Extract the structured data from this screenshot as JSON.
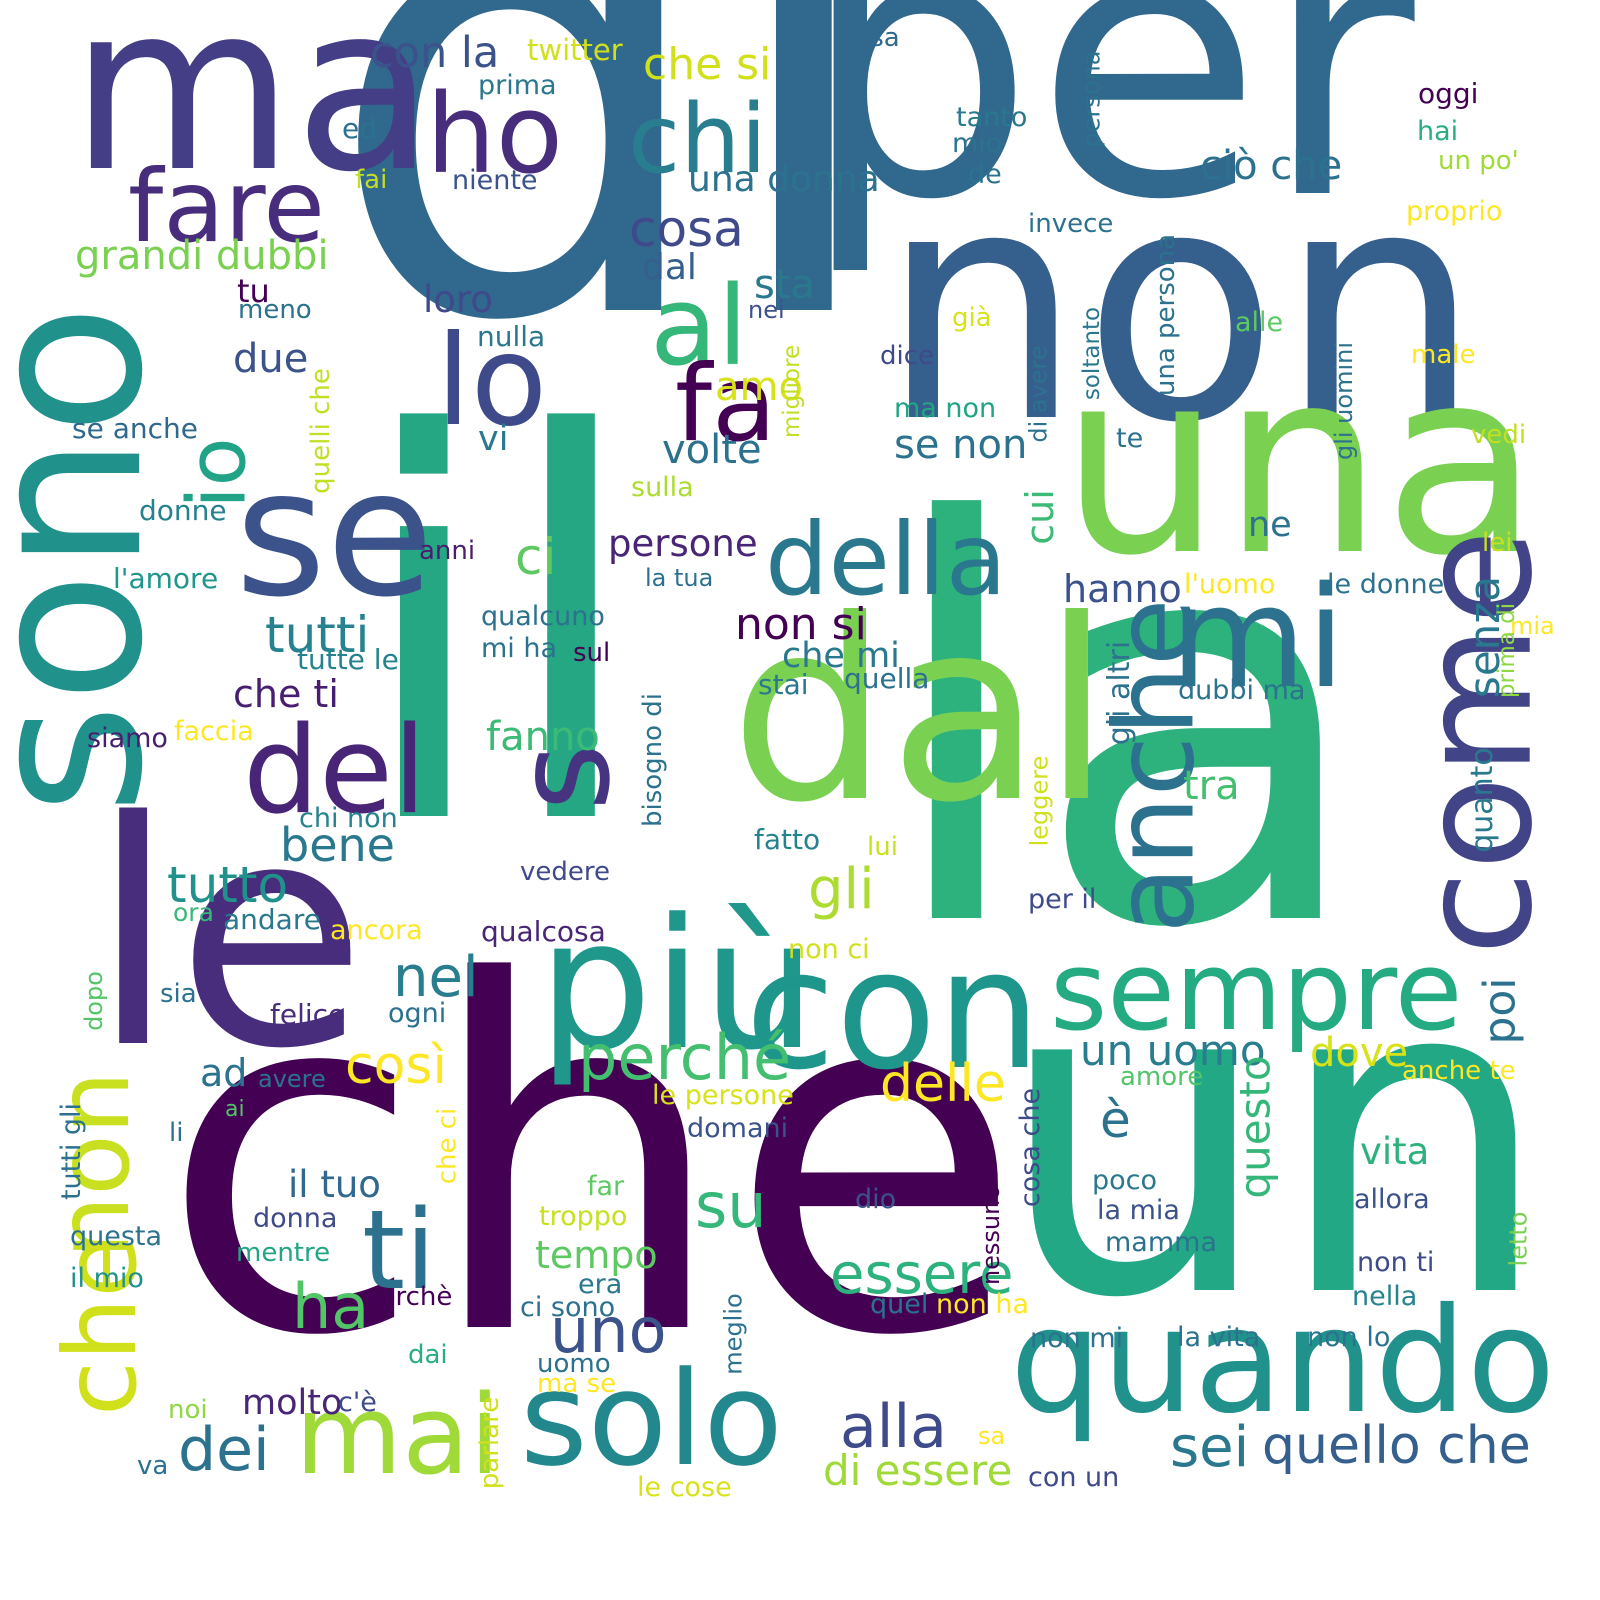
{
  "words": [
    {
      "text": "di",
      "color": "#31688e"
    },
    {
      "text": "per",
      "color": "#31688e"
    },
    {
      "text": "non",
      "color": "#355f8d"
    },
    {
      "text": "ma",
      "color": "#433e85"
    },
    {
      "text": "una",
      "color": "#7ad151"
    },
    {
      "text": "la",
      "color": "#2db27d"
    },
    {
      "text": "il",
      "color": "#25a784"
    },
    {
      "text": "che",
      "color": "#440154"
    },
    {
      "text": "un",
      "color": "#22a884"
    },
    {
      "text": "sono",
      "color": "#21918c"
    },
    {
      "text": "dal",
      "color": "#7ad151"
    },
    {
      "text": "più",
      "color": "#1f988b"
    },
    {
      "text": "con",
      "color": "#1f968b"
    },
    {
      "text": "quando",
      "color": "#21918c"
    },
    {
      "text": "le",
      "color": "#472d7b"
    },
    {
      "text": "se",
      "color": "#3b528b"
    },
    {
      "text": "della",
      "color": "#2a788e"
    },
    {
      "text": "come",
      "color": "#414487"
    },
    {
      "text": "mi",
      "color": "#2c728e"
    },
    {
      "text": "anche",
      "color": "#2c728e"
    },
    {
      "text": "solo",
      "color": "#23888e"
    },
    {
      "text": "sempre",
      "color": "#25ab82"
    },
    {
      "text": "ho",
      "color": "#472d7b"
    },
    {
      "text": "chi",
      "color": "#287d8e"
    },
    {
      "text": "fare",
      "color": "#472d7b"
    },
    {
      "text": "al",
      "color": "#35b779"
    },
    {
      "text": "lo",
      "color": "#3e4a89"
    },
    {
      "text": "fa",
      "color": "#440154"
    },
    {
      "text": "del",
      "color": "#482576"
    },
    {
      "text": "non",
      "color": "#c8e020"
    },
    {
      "text": "che",
      "color": "#d0e11c"
    },
    {
      "text": "ti",
      "color": "#2c728e"
    },
    {
      "text": "mai",
      "color": "#a0da39"
    },
    {
      "text": "perché",
      "color": "#44bf70"
    },
    {
      "text": "io",
      "color": "#20a386"
    },
    {
      "text": "s",
      "color": "#463480"
    },
    {
      "text": "essere",
      "color": "#2db27d"
    },
    {
      "text": "ha",
      "color": "#52c569"
    },
    {
      "text": "uno",
      "color": "#3b528b"
    },
    {
      "text": "su",
      "color": "#35b779"
    },
    {
      "text": "dei",
      "color": "#2c728e"
    },
    {
      "text": "alla",
      "color": "#3e4a89"
    },
    {
      "text": "sei",
      "color": "#2a788e"
    },
    {
      "text": "quello che",
      "color": "#355f8d"
    },
    {
      "text": "di essere",
      "color": "#a0da39"
    },
    {
      "text": "delle",
      "color": "#fde725"
    },
    {
      "text": "così",
      "color": "#fde725"
    },
    {
      "text": "nel",
      "color": "#287d8e"
    },
    {
      "text": "tutto",
      "color": "#21918c"
    },
    {
      "text": "bene",
      "color": "#2a788e"
    },
    {
      "text": "tutti",
      "color": "#26828e"
    },
    {
      "text": "gli",
      "color": "#addc30"
    },
    {
      "text": "ci",
      "color": "#5ec962"
    },
    {
      "text": "cosa",
      "color": "#3e4a89"
    },
    {
      "text": "una donna",
      "color": "#2c728e"
    },
    {
      "text": "con la",
      "color": "#3b528b"
    },
    {
      "text": "che si",
      "color": "#d0e11c"
    },
    {
      "text": "twitter",
      "color": "#d0e11c"
    },
    {
      "text": "casa",
      "color": "#31688e"
    },
    {
      "text": "prima",
      "color": "#2a788e"
    },
    {
      "text": "ed",
      "color": "#2c728e"
    },
    {
      "text": "fai",
      "color": "#c2df23"
    },
    {
      "text": "niente",
      "color": "#3b528b"
    },
    {
      "text": "grandi dubbi",
      "color": "#7ad151"
    },
    {
      "text": "dal",
      "color": "#355f8d"
    },
    {
      "text": "tu",
      "color": "#440154"
    },
    {
      "text": "meno",
      "color": "#2c728e"
    },
    {
      "text": "due",
      "color": "#3b528b"
    },
    {
      "text": "loro",
      "color": "#3e4a89"
    },
    {
      "text": "nulla",
      "color": "#2a788e"
    },
    {
      "text": "sta",
      "color": "#2a788e"
    },
    {
      "text": "nei",
      "color": "#3b528b"
    },
    {
      "text": "amo",
      "color": "#d8e219"
    },
    {
      "text": "vi",
      "color": "#2a788e"
    },
    {
      "text": "volte",
      "color": "#2c728e"
    },
    {
      "text": "se anche",
      "color": "#31688e"
    },
    {
      "text": "donne",
      "color": "#26828e"
    },
    {
      "text": "anni",
      "color": "#481f70"
    },
    {
      "text": "l'amore",
      "color": "#1f968b"
    },
    {
      "text": "persone",
      "color": "#482576"
    },
    {
      "text": "la tua",
      "color": "#2c728e"
    },
    {
      "text": "qualcuno",
      "color": "#2c728e"
    },
    {
      "text": "non si",
      "color": "#440154"
    },
    {
      "text": "che mi",
      "color": "#2a788e"
    },
    {
      "text": "mi ha",
      "color": "#2c728e"
    },
    {
      "text": "sul",
      "color": "#440154"
    },
    {
      "text": "tutte le",
      "color": "#26828e"
    },
    {
      "text": "che ti",
      "color": "#481f70"
    },
    {
      "text": "stai",
      "color": "#2a788e"
    },
    {
      "text": "quella",
      "color": "#2c728e"
    },
    {
      "text": "siamo",
      "color": "#481f70"
    },
    {
      "text": "faccia",
      "color": "#fde725"
    },
    {
      "text": "fanno",
      "color": "#3bbb75"
    },
    {
      "text": "chi non",
      "color": "#26828e"
    },
    {
      "text": "fatto",
      "color": "#26828e"
    },
    {
      "text": "lui",
      "color": "#c8e020"
    },
    {
      "text": "vedere",
      "color": "#3e4a89"
    },
    {
      "text": "ora",
      "color": "#38b977"
    },
    {
      "text": "andare",
      "color": "#2a788e"
    },
    {
      "text": "ancora",
      "color": "#fde725"
    },
    {
      "text": "qualcosa",
      "color": "#482576"
    },
    {
      "text": "sia",
      "color": "#2c728e"
    },
    {
      "text": "felice",
      "color": "#472d7b"
    },
    {
      "text": "ogni",
      "color": "#2c728e"
    },
    {
      "text": "ad",
      "color": "#2c728e"
    },
    {
      "text": "avere",
      "color": "#2c728e"
    },
    {
      "text": "ai",
      "color": "#52c569"
    },
    {
      "text": "li",
      "color": "#2c728e"
    },
    {
      "text": "le persone",
      "color": "#d8e219"
    },
    {
      "text": "domani",
      "color": "#3b528b"
    },
    {
      "text": "il tuo",
      "color": "#31688e"
    },
    {
      "text": "donna",
      "color": "#3e4a89"
    },
    {
      "text": "questa",
      "color": "#2c728e"
    },
    {
      "text": "mentre",
      "color": "#21a585"
    },
    {
      "text": "il mio",
      "color": "#21918c"
    },
    {
      "text": "tempo",
      "color": "#5ec962"
    },
    {
      "text": "troppo",
      "color": "#c8e020"
    },
    {
      "text": "far",
      "color": "#5ec962"
    },
    {
      "text": "era",
      "color": "#2a788e"
    },
    {
      "text": "ci sono",
      "color": "#2c728e"
    },
    {
      "text": "perchè",
      "color": "#440154"
    },
    {
      "text": "dai",
      "color": "#29af7f"
    },
    {
      "text": "uomo",
      "color": "#2c728e"
    },
    {
      "text": "ma se",
      "color": "#fde725"
    },
    {
      "text": "noi",
      "color": "#8fd744"
    },
    {
      "text": "molto",
      "color": "#482576"
    },
    {
      "text": "c'è",
      "color": "#3e4a89"
    },
    {
      "text": "va",
      "color": "#2c728e"
    },
    {
      "text": "le cose",
      "color": "#d8e219"
    },
    {
      "text": "con un",
      "color": "#3e4a89"
    },
    {
      "text": "quel",
      "color": "#2c728e"
    },
    {
      "text": "non ha",
      "color": "#fde725"
    },
    {
      "text": "non mi",
      "color": "#2c728e"
    },
    {
      "text": "la vita",
      "color": "#2c728e"
    },
    {
      "text": "non lo",
      "color": "#2c728e"
    },
    {
      "text": "nella",
      "color": "#26828e"
    },
    {
      "text": "non ti",
      "color": "#3e4a89"
    },
    {
      "text": "mamma",
      "color": "#2c728e"
    },
    {
      "text": "la mia",
      "color": "#3b528b"
    },
    {
      "text": "poco",
      "color": "#2a788e"
    },
    {
      "text": "allora",
      "color": "#3b528b"
    },
    {
      "text": "dio",
      "color": "#3b528b"
    },
    {
      "text": "vita",
      "color": "#2db27d"
    },
    {
      "text": "amore",
      "color": "#52c569"
    },
    {
      "text": "anche te",
      "color": "#fde725"
    },
    {
      "text": "un uomo",
      "color": "#287d8e"
    },
    {
      "text": "dove",
      "color": "#d8e219"
    },
    {
      "text": "tra",
      "color": "#44bf70"
    },
    {
      "text": "hanno",
      "color": "#3b528b"
    },
    {
      "text": "ne",
      "color": "#2c728e"
    },
    {
      "text": "cui",
      "color": "#3bbb75"
    },
    {
      "text": "se non",
      "color": "#2c728e"
    },
    {
      "text": "ma non",
      "color": "#21a585"
    },
    {
      "text": "te",
      "color": "#2c728e"
    },
    {
      "text": "dice",
      "color": "#3e4a89"
    },
    {
      "text": "già",
      "color": "#d8e219"
    },
    {
      "text": "alle",
      "color": "#5ec962"
    },
    {
      "text": "male",
      "color": "#fde725"
    },
    {
      "text": "vedi",
      "color": "#c2df23"
    },
    {
      "text": "lei",
      "color": "#c8e020"
    },
    {
      "text": "l'uomo",
      "color": "#fde725"
    },
    {
      "text": "le donne",
      "color": "#2c728e"
    },
    {
      "text": "mia",
      "color": "#fde725"
    },
    {
      "text": "dubbi ma",
      "color": "#2c728e"
    },
    {
      "text": "sulla",
      "color": "#addc30"
    },
    {
      "text": "ciò che",
      "color": "#2c728e"
    },
    {
      "text": "invece",
      "color": "#2c728e"
    },
    {
      "text": "tanto",
      "color": "#2a788e"
    },
    {
      "text": "mio",
      "color": "#2c728e"
    },
    {
      "text": "de",
      "color": "#2c728e"
    },
    {
      "text": "oggi",
      "color": "#440154"
    },
    {
      "text": "hai",
      "color": "#29af7f"
    },
    {
      "text": "un po'",
      "color": "#a0da39"
    },
    {
      "text": "proprio",
      "color": "#fde725"
    },
    {
      "text": "per il",
      "color": "#3e4a89"
    },
    {
      "text": "non ci",
      "color": "#d0e11c"
    },
    {
      "text": "senza",
      "color": "#2a788e"
    },
    {
      "text": "poi",
      "color": "#2c728e"
    },
    {
      "text": "questo",
      "color": "#35b779"
    },
    {
      "text": "quanto",
      "color": "#2a788e"
    },
    {
      "text": "prima di",
      "color": "#8fd744"
    },
    {
      "text": "gli altri",
      "color": "#2c728e"
    },
    {
      "text": "è",
      "color": "#2c728e"
    },
    {
      "text": "cosa che",
      "color": "#3e4a89"
    },
    {
      "text": "nessuno",
      "color": "#440154"
    },
    {
      "text": "che ci",
      "color": "#fde725"
    },
    {
      "text": "tutti gli",
      "color": "#2c728e"
    },
    {
      "text": "meglio",
      "color": "#2c728e"
    },
    {
      "text": "parlare",
      "color": "#d0e11c"
    },
    {
      "text": "bisogno di",
      "color": "#2c728e"
    },
    {
      "text": "dopo",
      "color": "#52c569"
    },
    {
      "text": "quelli che",
      "color": "#c2df23"
    },
    {
      "text": "migliore",
      "color": "#c2df23"
    },
    {
      "text": "di avere",
      "color": "#2c728e"
    },
    {
      "text": "soltanto",
      "color": "#2a788e"
    },
    {
      "text": "una persona",
      "color": "#2c728e"
    },
    {
      "text": "persona",
      "color": "#2c728e"
    },
    {
      "text": "gli uomini",
      "color": "#2c728e"
    },
    {
      "text": "leggere",
      "color": "#d0e11c"
    },
    {
      "text": "letto",
      "color": "#7ad151"
    },
    {
      "text": "sa",
      "color": "#fde725"
    }
  ]
}
